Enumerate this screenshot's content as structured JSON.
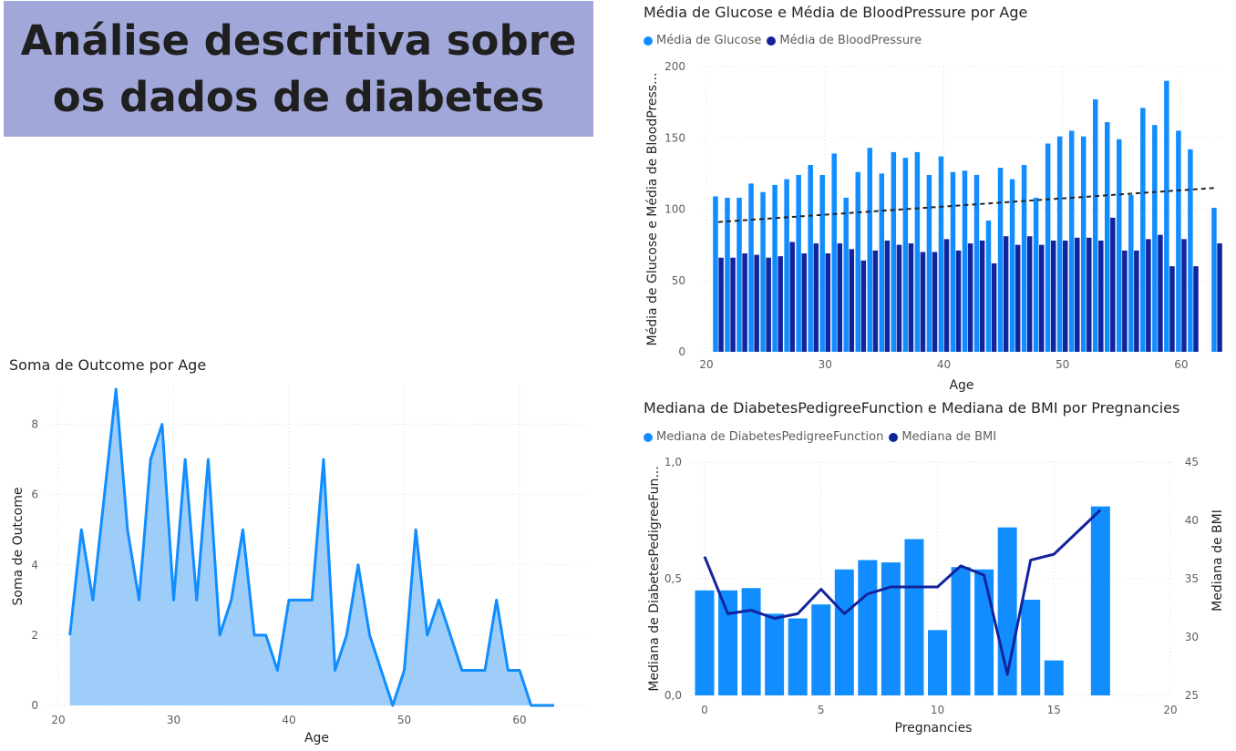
{
  "header": {
    "title": "Análise descritiva sobre os dados de diabetes"
  },
  "colors": {
    "light_blue": "#118dff",
    "dark_blue": "#12239e",
    "area_fill": "#9ecdf9",
    "title_bg": "#a1a8d9"
  },
  "chart_data": [
    {
      "type": "bar",
      "title": "Média de Glucose e Média de BloodPressure por Age",
      "xlabel": "Age",
      "ylabel": "Média de Glucose e Média de BloodPress...",
      "ylim": [
        0,
        200
      ],
      "xlim": [
        20,
        63
      ],
      "xticks": [
        "20",
        "30",
        "40",
        "50",
        "60"
      ],
      "yticks": [
        "0",
        "50",
        "100",
        "150",
        "200"
      ],
      "legend": [
        "Média de Glucose",
        "Média de BloodPressure"
      ],
      "trendline": {
        "x": [
          21,
          63
        ],
        "y": [
          91,
          115
        ]
      },
      "x": [
        21,
        22,
        23,
        24,
        25,
        26,
        27,
        28,
        29,
        30,
        31,
        32,
        33,
        34,
        35,
        36,
        37,
        38,
        39,
        40,
        41,
        42,
        43,
        44,
        45,
        46,
        47,
        48,
        49,
        50,
        51,
        52,
        53,
        54,
        55,
        56,
        57,
        58,
        59,
        60,
        61,
        63
      ],
      "series": [
        {
          "name": "Média de Glucose",
          "values": [
            109,
            108,
            108,
            118,
            112,
            117,
            121,
            124,
            131,
            124,
            139,
            108,
            126,
            143,
            125,
            140,
            136,
            140,
            124,
            137,
            126,
            127,
            124,
            92,
            129,
            121,
            131,
            108,
            146,
            151,
            155,
            151,
            177,
            161,
            149,
            110,
            171,
            159,
            190,
            155,
            142,
            101
          ]
        },
        {
          "name": "Média de BloodPressure",
          "values": [
            66,
            66,
            69,
            68,
            66,
            67,
            77,
            69,
            76,
            69,
            76,
            72,
            64,
            71,
            78,
            75,
            76,
            70,
            70,
            79,
            71,
            76,
            78,
            62,
            81,
            75,
            81,
            75,
            78,
            78,
            80,
            80,
            78,
            94,
            71,
            71,
            79,
            82,
            60,
            79,
            60,
            76
          ]
        }
      ]
    },
    {
      "type": "area",
      "title": "Soma de Outcome por Age",
      "xlabel": "Age",
      "ylabel": "Soma de Outcome",
      "ylim": [
        0,
        9
      ],
      "xlim": [
        20,
        63
      ],
      "xticks": [
        "20",
        "30",
        "40",
        "50",
        "60"
      ],
      "yticks": [
        "0",
        "2",
        "4",
        "6",
        "8"
      ],
      "x": [
        21,
        22,
        23,
        24,
        25,
        26,
        27,
        28,
        29,
        30,
        31,
        32,
        33,
        34,
        35,
        36,
        37,
        38,
        39,
        40,
        41,
        42,
        43,
        44,
        45,
        46,
        47,
        48,
        49,
        50,
        51,
        52,
        53,
        54,
        55,
        56,
        57,
        58,
        59,
        60,
        61,
        62,
        63
      ],
      "values": [
        2,
        5,
        3,
        6,
        9,
        5,
        3,
        7,
        8,
        3,
        7,
        3,
        7,
        2,
        3,
        5,
        2,
        2,
        1,
        3,
        3,
        3,
        7,
        1,
        2,
        4,
        2,
        1,
        0,
        1,
        5,
        2,
        3,
        2,
        1,
        1,
        1,
        3,
        1,
        1,
        0,
        0,
        0
      ]
    },
    {
      "type": "bar+line",
      "title": "Mediana de DiabetesPedigreeFunction e Mediana de BMI por Pregnancies",
      "xlabel": "Pregnancies",
      "ylabel_left": "Mediana de DiabetesPedigreeFun...",
      "ylabel_right": "Mediana de BMI",
      "xlim": [
        -0.5,
        20
      ],
      "ylim_left": [
        0,
        1
      ],
      "ylim_right": [
        25,
        45
      ],
      "xticks": [
        "0",
        "5",
        "10",
        "15",
        "20"
      ],
      "yticks_left": [
        "0,0",
        "0,5",
        "1,0"
      ],
      "yticks_right": [
        "25",
        "30",
        "35",
        "40",
        "45"
      ],
      "legend": [
        "Mediana de DiabetesPedigreeFunction",
        "Mediana de BMI"
      ],
      "x": [
        0,
        1,
        2,
        3,
        4,
        5,
        6,
        7,
        8,
        9,
        10,
        11,
        12,
        13,
        14,
        15,
        17
      ],
      "series": [
        {
          "name": "Mediana de DiabetesPedigreeFunction",
          "values": [
            0.45,
            0.45,
            0.46,
            0.35,
            0.33,
            0.39,
            0.54,
            0.58,
            0.57,
            0.67,
            0.28,
            0.55,
            0.54,
            0.72,
            0.41,
            0.15,
            0.81
          ]
        },
        {
          "name": "Mediana de BMI",
          "values": [
            36.9,
            32.0,
            32.3,
            31.6,
            32.0,
            34.1,
            32.0,
            33.7,
            34.3,
            34.3,
            34.3,
            36.1,
            35.3,
            26.8,
            36.6,
            37.1,
            40.9
          ]
        }
      ]
    }
  ]
}
